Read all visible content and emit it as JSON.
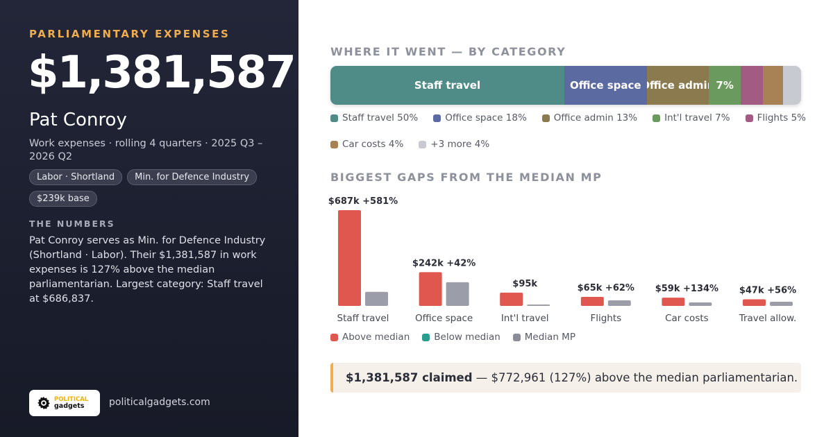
{
  "left": {
    "eyebrow": "PARLIAMENTARY EXPENSES",
    "total": "$1,381,587",
    "name": "Pat Conroy",
    "subtitle": "Work expenses · rolling 4 quarters · 2025 Q3 – 2026 Q2",
    "tags": [
      "Labor · Shortland",
      "Min. for Defence Industry",
      "$239k base"
    ],
    "numbers_heading": "THE NUMBERS",
    "numbers_body": "Pat Conroy serves as Min. for Defence Industry (Shortland · Labor). Their $1,381,587 in work expenses is 127% above the median parliamentarian. Largest category: Staff travel at $686,837.",
    "logo_line1": "POLITICAL",
    "logo_line2": "gadgets",
    "site": "politicalgadgets.com"
  },
  "category": {
    "title": "WHERE IT WENT — BY CATEGORY",
    "segments": [
      {
        "label": "Staff travel",
        "share": 49.7,
        "color": "#4f8b87",
        "bar_text": "Staff travel"
      },
      {
        "label": "Office space",
        "share": 17.5,
        "color": "#5b6ba2",
        "bar_text": "Office space"
      },
      {
        "label": "Office admin",
        "share": 13.2,
        "color": "#8a7a4e",
        "bar_text": "Office admin"
      },
      {
        "label": "Int'l travel",
        "share": 6.8,
        "color": "#6b9a5e",
        "bar_text": "7%"
      },
      {
        "label": "Flights",
        "share": 4.7,
        "color": "#a25c84",
        "bar_text": ""
      },
      {
        "label": "Car costs",
        "share": 4.3,
        "color": "#a88255",
        "bar_text": ""
      },
      {
        "label": "+3 more",
        "share": 3.8,
        "color": "#c8cad1",
        "bar_text": ""
      }
    ],
    "legend": [
      {
        "text": "Staff travel 50%",
        "color": "#4f8b87"
      },
      {
        "text": "Office space 18%",
        "color": "#5b6ba2"
      },
      {
        "text": "Office admin 13%",
        "color": "#8a7a4e"
      },
      {
        "text": "Int'l travel 7%",
        "color": "#6b9a5e"
      },
      {
        "text": "Flights 5%",
        "color": "#a25c84"
      },
      {
        "text": "Car costs 4%",
        "color": "#a88255"
      },
      {
        "text": "+3 more 4%",
        "color": "#c8cad1"
      }
    ]
  },
  "chart_data": {
    "type": "bar",
    "title": "BIGGEST GAPS FROM THE MEDIAN MP",
    "categories": [
      "Staff travel",
      "Office space",
      "Int'l travel",
      "Flights",
      "Car costs",
      "Travel allow."
    ],
    "value_labels": [
      "$687k +581%",
      "$242k +42%",
      "$95k",
      "$65k +62%",
      "$59k +134%",
      "$47k +56%"
    ],
    "series": [
      {
        "name": "Above median",
        "color": "#e0574f",
        "values": [
          687,
          242,
          95,
          65,
          59,
          47
        ]
      },
      {
        "name": "Median MP",
        "color": "#9b9da8",
        "values": [
          101,
          170,
          4,
          40,
          25,
          30
        ]
      }
    ],
    "legend": [
      {
        "text": "Above median",
        "color": "#e0574f"
      },
      {
        "text": "Below median",
        "color": "#2a9d8f"
      },
      {
        "text": "Median MP",
        "color": "#8a8d99"
      }
    ],
    "ylim": [
      0,
      687
    ],
    "grid": false
  },
  "callout": {
    "bold": "$1,381,587 claimed",
    "rest": " — $772,961 (127%) above the median parliamentarian."
  }
}
